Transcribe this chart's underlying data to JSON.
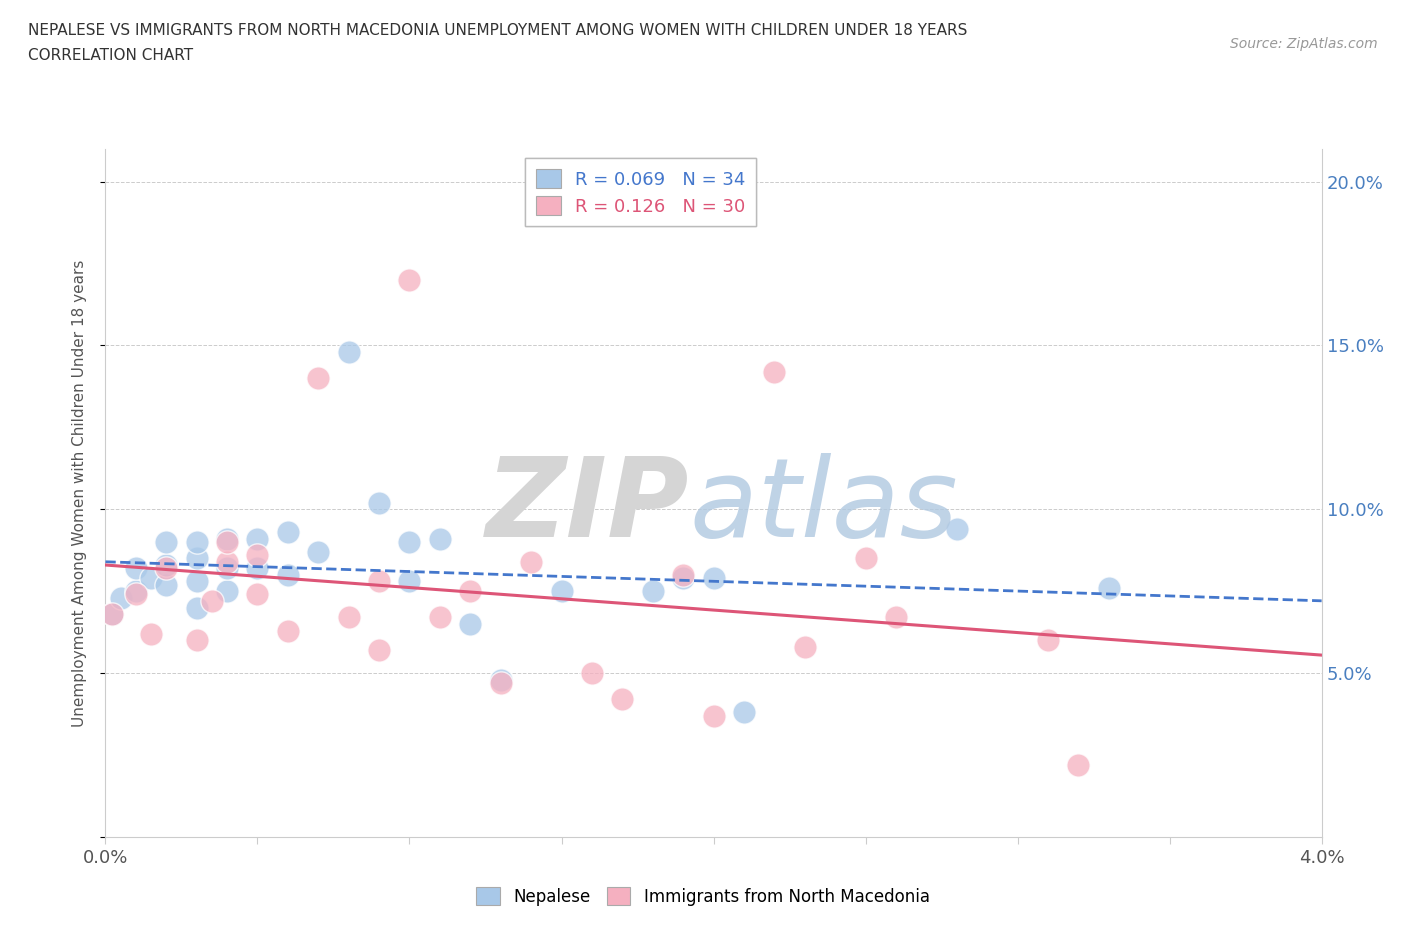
{
  "title_line1": "NEPALESE VS IMMIGRANTS FROM NORTH MACEDONIA UNEMPLOYMENT AMONG WOMEN WITH CHILDREN UNDER 18 YEARS",
  "title_line2": "CORRELATION CHART",
  "source_text": "Source: ZipAtlas.com",
  "ylabel": "Unemployment Among Women with Children Under 18 years",
  "xlim": [
    0.0,
    0.04
  ],
  "ylim": [
    0.0,
    0.21
  ],
  "xticks": [
    0.0,
    0.005,
    0.01,
    0.015,
    0.02,
    0.025,
    0.03,
    0.035,
    0.04
  ],
  "xticklabels": [
    "0.0%",
    "",
    "",
    "",
    "",
    "",
    "",
    "",
    "4.0%"
  ],
  "yticks": [
    0.0,
    0.05,
    0.1,
    0.15,
    0.2
  ],
  "yticklabels": [
    "",
    "5.0%",
    "10.0%",
    "15.0%",
    "20.0%"
  ],
  "blue_color": "#a8c8e8",
  "pink_color": "#f5b0c0",
  "blue_line_color": "#4477cc",
  "pink_line_color": "#dd5577",
  "R_blue": 0.069,
  "N_blue": 34,
  "R_pink": 0.126,
  "N_pink": 30,
  "nepalese_x": [
    0.0002,
    0.0005,
    0.001,
    0.001,
    0.0015,
    0.002,
    0.002,
    0.002,
    0.003,
    0.003,
    0.003,
    0.003,
    0.004,
    0.004,
    0.004,
    0.005,
    0.005,
    0.006,
    0.006,
    0.007,
    0.008,
    0.009,
    0.01,
    0.01,
    0.011,
    0.012,
    0.013,
    0.015,
    0.018,
    0.019,
    0.02,
    0.021,
    0.028,
    0.033
  ],
  "nepalese_y": [
    0.068,
    0.073,
    0.075,
    0.082,
    0.079,
    0.077,
    0.083,
    0.09,
    0.07,
    0.078,
    0.085,
    0.09,
    0.075,
    0.082,
    0.091,
    0.082,
    0.091,
    0.093,
    0.08,
    0.087,
    0.148,
    0.102,
    0.09,
    0.078,
    0.091,
    0.065,
    0.048,
    0.075,
    0.075,
    0.079,
    0.079,
    0.038,
    0.094,
    0.076
  ],
  "macedonia_x": [
    0.0002,
    0.001,
    0.0015,
    0.002,
    0.003,
    0.0035,
    0.004,
    0.004,
    0.005,
    0.005,
    0.006,
    0.007,
    0.008,
    0.009,
    0.009,
    0.01,
    0.011,
    0.012,
    0.013,
    0.014,
    0.016,
    0.017,
    0.019,
    0.02,
    0.022,
    0.023,
    0.025,
    0.026,
    0.031,
    0.032
  ],
  "macedonia_y": [
    0.068,
    0.074,
    0.062,
    0.082,
    0.06,
    0.072,
    0.084,
    0.09,
    0.074,
    0.086,
    0.063,
    0.14,
    0.067,
    0.057,
    0.078,
    0.17,
    0.067,
    0.075,
    0.047,
    0.084,
    0.05,
    0.042,
    0.08,
    0.037,
    0.142,
    0.058,
    0.085,
    0.067,
    0.06,
    0.022
  ]
}
